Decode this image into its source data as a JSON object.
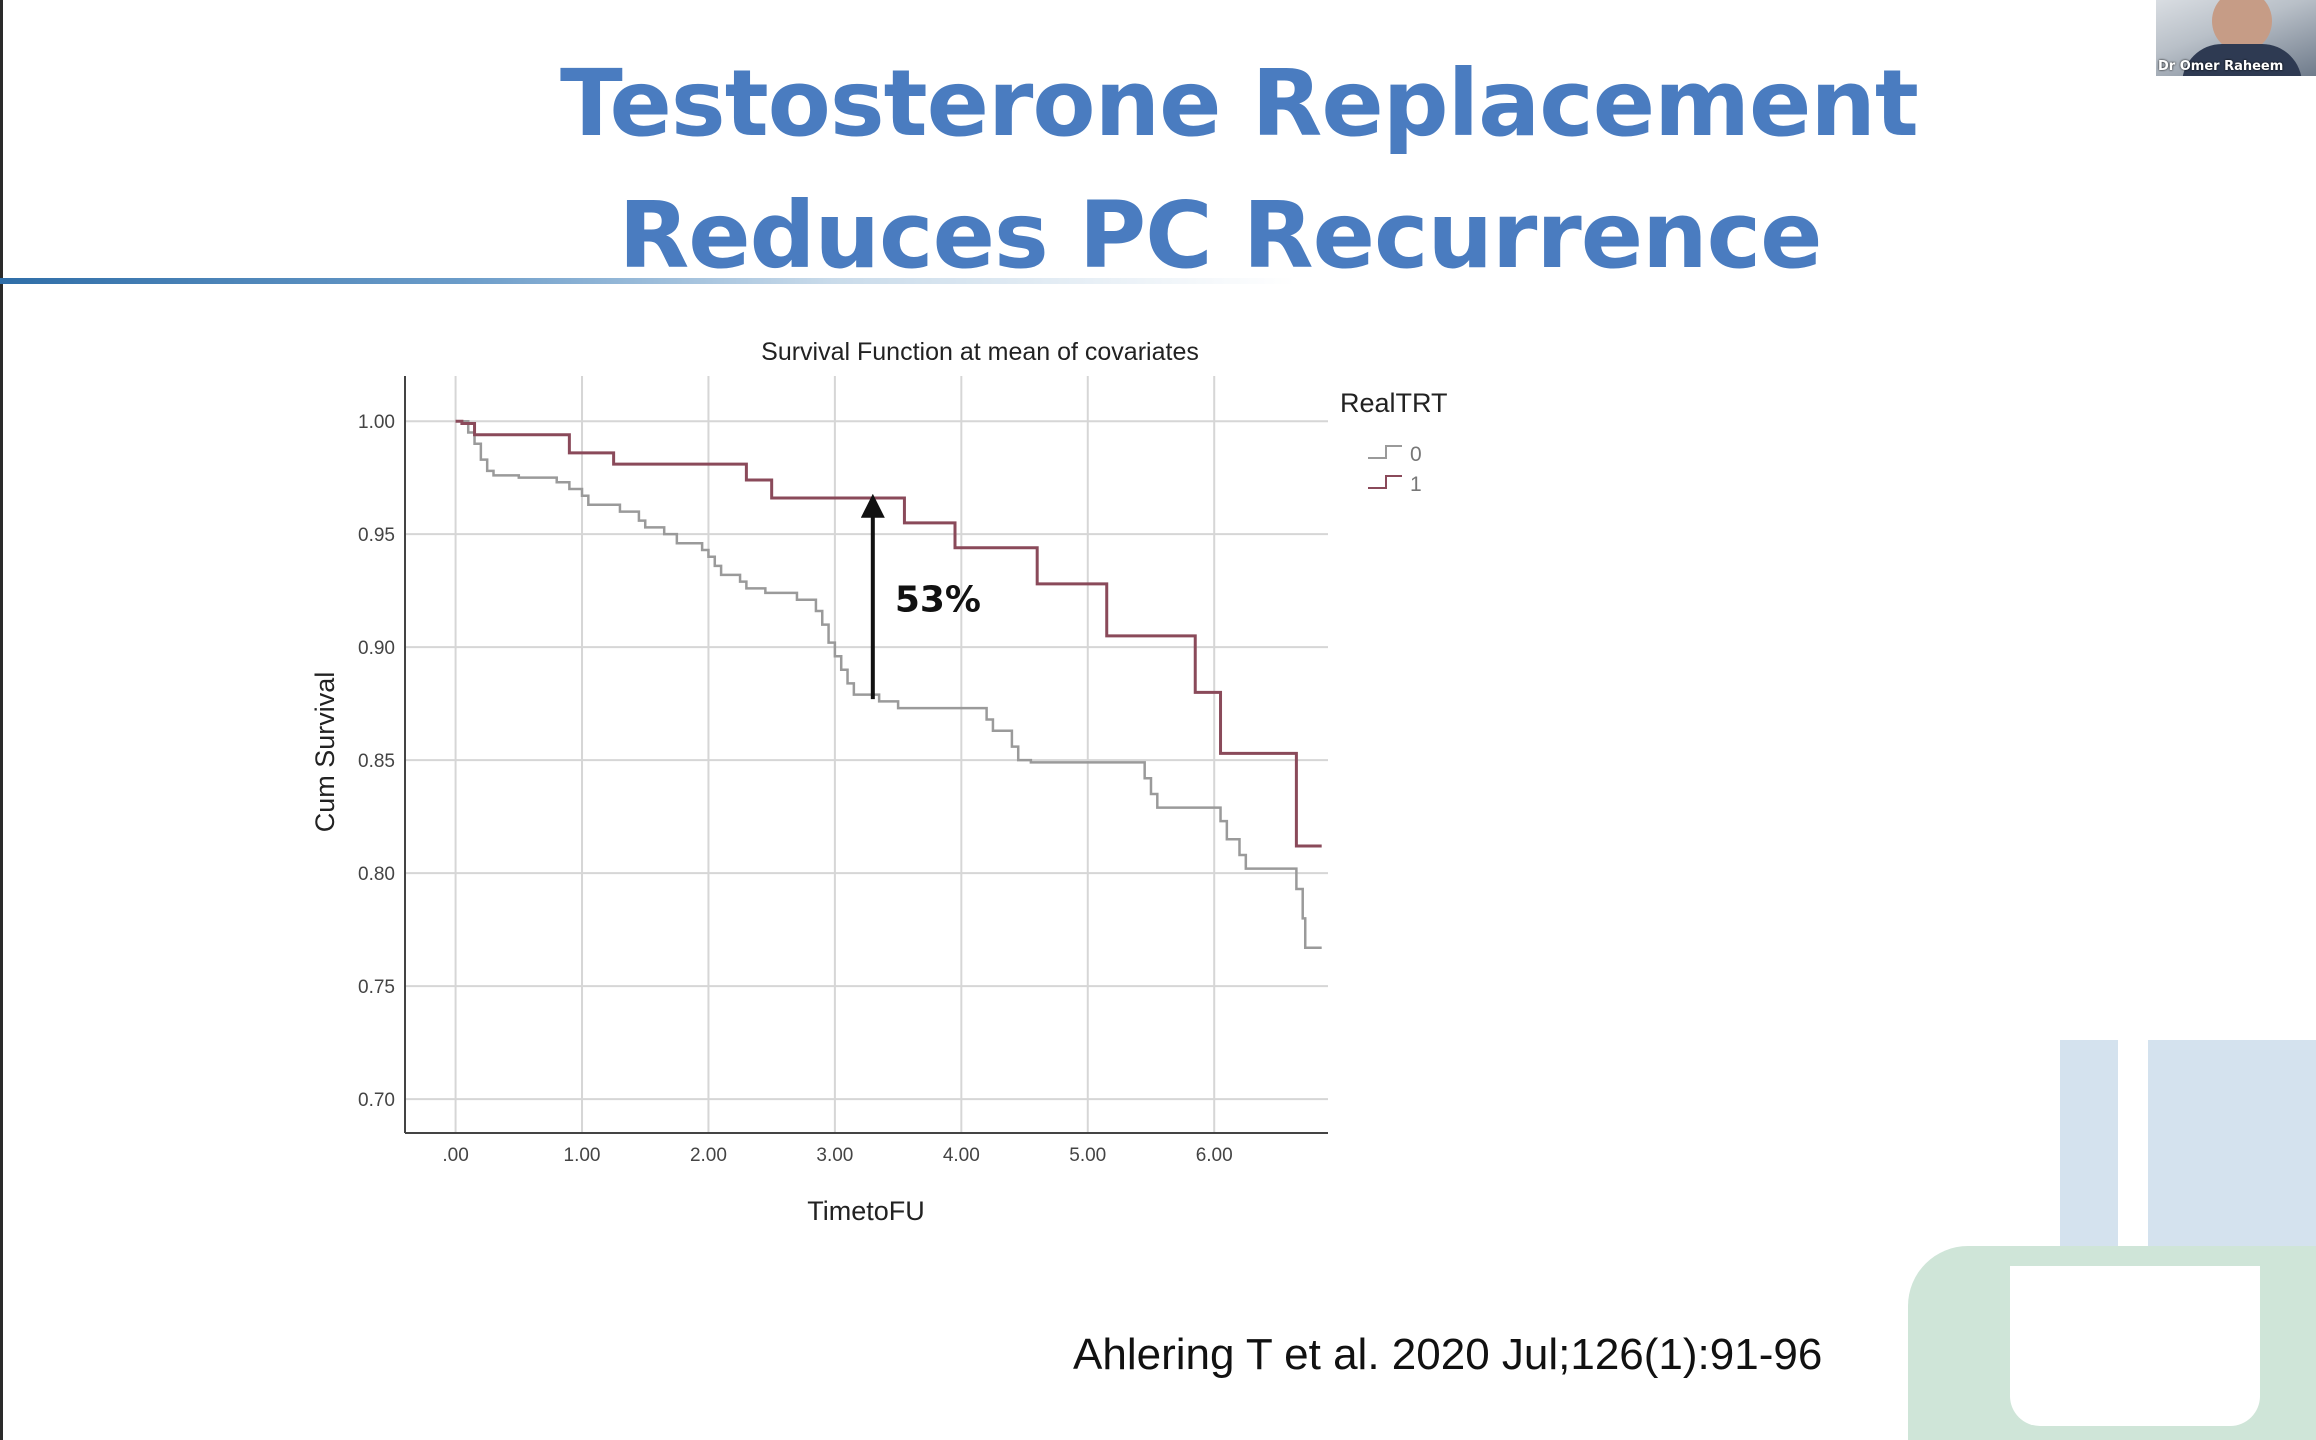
{
  "slide": {
    "title_line1": "Testosterone Replacement",
    "title_line2": "Reduces PC Recurrence",
    "citation": "Ahlering T et al. 2020 Jul;126(1):91-96",
    "presenter_name": "Dr Omer Raheem"
  },
  "colors": {
    "title": "#4a7cc0",
    "series_0": "#9a9a9a",
    "series_1": "#8a4a5a",
    "annotation": "#111111"
  },
  "chart_data": {
    "type": "line",
    "step": true,
    "title": "Survival Function at mean of covariates",
    "xlabel": "TimetoFU",
    "ylabel": "Cum Survival",
    "xlim": [
      -0.4,
      6.9
    ],
    "ylim": [
      0.685,
      1.02
    ],
    "x_ticks": [
      0,
      1,
      2,
      3,
      4,
      5,
      6
    ],
    "x_tick_labels": [
      ".00",
      "1.00",
      "2.00",
      "3.00",
      "4.00",
      "5.00",
      "6.00"
    ],
    "y_ticks": [
      0.7,
      0.75,
      0.8,
      0.85,
      0.9,
      0.95,
      1.0
    ],
    "y_tick_labels": [
      "0.70",
      "0.75",
      "0.80",
      "0.85",
      "0.90",
      "0.95",
      "1.00"
    ],
    "grid": true,
    "legend": {
      "title": "RealTRT",
      "position": "top-right"
    },
    "series": [
      {
        "name": "0",
        "points": [
          [
            0,
            1.0
          ],
          [
            0.1,
            0.995
          ],
          [
            0.15,
            0.99
          ],
          [
            0.2,
            0.983
          ],
          [
            0.25,
            0.978
          ],
          [
            0.3,
            0.976
          ],
          [
            0.5,
            0.975
          ],
          [
            0.8,
            0.973
          ],
          [
            0.9,
            0.97
          ],
          [
            1.0,
            0.967
          ],
          [
            1.05,
            0.963
          ],
          [
            1.3,
            0.96
          ],
          [
            1.45,
            0.956
          ],
          [
            1.5,
            0.953
          ],
          [
            1.65,
            0.95
          ],
          [
            1.75,
            0.946
          ],
          [
            1.95,
            0.943
          ],
          [
            2.0,
            0.94
          ],
          [
            2.05,
            0.936
          ],
          [
            2.1,
            0.932
          ],
          [
            2.25,
            0.929
          ],
          [
            2.3,
            0.926
          ],
          [
            2.45,
            0.924
          ],
          [
            2.7,
            0.921
          ],
          [
            2.85,
            0.916
          ],
          [
            2.9,
            0.91
          ],
          [
            2.95,
            0.902
          ],
          [
            3.0,
            0.896
          ],
          [
            3.05,
            0.89
          ],
          [
            3.1,
            0.884
          ],
          [
            3.15,
            0.879
          ],
          [
            3.35,
            0.876
          ],
          [
            3.5,
            0.873
          ],
          [
            4.2,
            0.868
          ],
          [
            4.25,
            0.863
          ],
          [
            4.4,
            0.856
          ],
          [
            4.45,
            0.85
          ],
          [
            4.55,
            0.849
          ],
          [
            5.45,
            0.842
          ],
          [
            5.5,
            0.835
          ],
          [
            5.55,
            0.829
          ],
          [
            6.05,
            0.823
          ],
          [
            6.1,
            0.815
          ],
          [
            6.2,
            0.808
          ],
          [
            6.25,
            0.802
          ],
          [
            6.65,
            0.793
          ],
          [
            6.7,
            0.78
          ],
          [
            6.72,
            0.767
          ],
          [
            6.85,
            0.767
          ]
        ]
      },
      {
        "name": "1",
        "points": [
          [
            0,
            1.0
          ],
          [
            0.05,
            0.999
          ],
          [
            0.15,
            0.994
          ],
          [
            0.9,
            0.986
          ],
          [
            1.25,
            0.981
          ],
          [
            2.3,
            0.974
          ],
          [
            2.5,
            0.966
          ],
          [
            3.55,
            0.955
          ],
          [
            3.95,
            0.944
          ],
          [
            4.6,
            0.928
          ],
          [
            5.15,
            0.905
          ],
          [
            5.85,
            0.88
          ],
          [
            6.05,
            0.853
          ],
          [
            6.65,
            0.812
          ],
          [
            6.85,
            0.812
          ]
        ]
      }
    ],
    "annotations": [
      {
        "type": "arrow",
        "x": 3.3,
        "y_from": 0.877,
        "y_to": 0.967,
        "label": "53%"
      }
    ]
  }
}
